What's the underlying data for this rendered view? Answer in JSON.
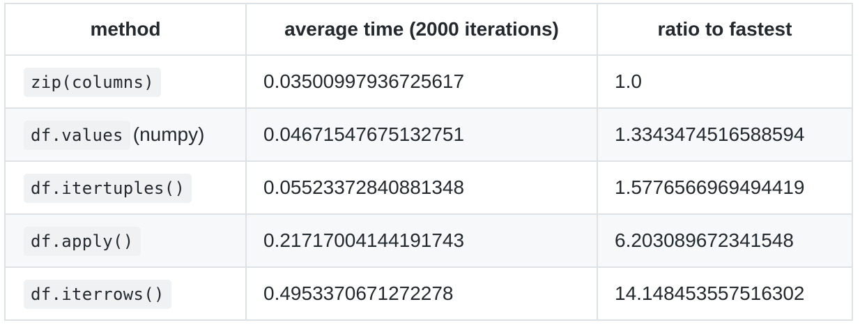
{
  "table": {
    "headers": [
      "method",
      "average time (2000 iterations)",
      "ratio to fastest"
    ],
    "rows": [
      {
        "method_code": "zip(columns)",
        "method_suffix": "",
        "avg_time": "0.03500997936725617",
        "ratio": "1.0"
      },
      {
        "method_code": "df.values",
        "method_suffix": "(numpy)",
        "avg_time": "0.04671547675132751",
        "ratio": "1.3343474516588594"
      },
      {
        "method_code": "df.itertuples()",
        "method_suffix": "",
        "avg_time": "0.05523372840881348",
        "ratio": "1.5776566969494419"
      },
      {
        "method_code": "df.apply()",
        "method_suffix": "",
        "avg_time": "0.21717004144191743",
        "ratio": "6.203089672341548"
      },
      {
        "method_code": "df.iterrows()",
        "method_suffix": "",
        "avg_time": "0.4953370671272278",
        "ratio": "14.148453557516302"
      }
    ]
  }
}
